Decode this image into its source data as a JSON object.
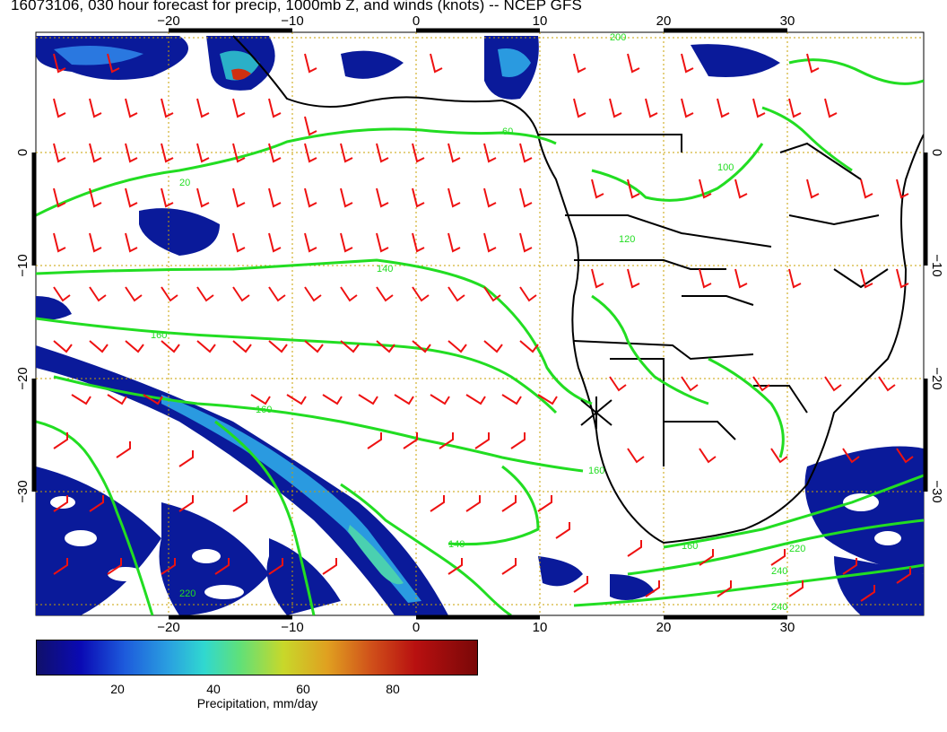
{
  "title": "16073106, 030 hour forecast for precip, 1000mb Z, and winds (knots) -- NCEP GFS",
  "axes": {
    "lon_ticks": [
      "−20",
      "−10",
      "0",
      "10",
      "20",
      "30"
    ],
    "lat_ticks": [
      "0",
      "−10",
      "−20",
      "−30"
    ]
  },
  "contour_labels": [
    "20",
    "40",
    "60",
    "80",
    "100",
    "120",
    "140",
    "160",
    "160",
    "160",
    "160",
    "200",
    "220",
    "240",
    "240"
  ],
  "colorbar": {
    "ticks": [
      "20",
      "40",
      "60",
      "80"
    ],
    "title": "Precipitation, mm/day"
  },
  "colors": {
    "contour": "#22dd22",
    "wind_barb": "#ee1111",
    "coast": "#000000",
    "grid": "#c8a000"
  },
  "marker": "crosshair-marker"
}
